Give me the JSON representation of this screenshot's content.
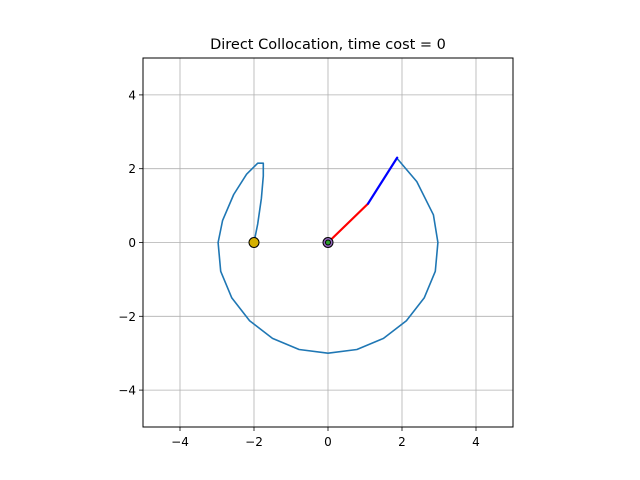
{
  "chart_data": {
    "type": "line",
    "title": "Direct Collocation, time cost = 0",
    "xlabel": "",
    "ylabel": "",
    "xlim": [
      -5,
      5
    ],
    "ylim": [
      -5,
      5
    ],
    "grid": true,
    "aspect": "equal",
    "xticks": [
      -4,
      -2,
      0,
      2,
      4
    ],
    "yticks": [
      -4,
      -2,
      0,
      2,
      4
    ],
    "xtick_labels": [
      "−4",
      "−2",
      "0",
      "2",
      "4"
    ],
    "ytick_labels": [
      "−4",
      "−2",
      "0",
      "2",
      "4"
    ],
    "trajectory": {
      "color": "#1f77b4",
      "x": [
        -2.0,
        -1.9,
        -1.8,
        -1.75,
        -1.75,
        -1.9,
        -2.2,
        -2.55,
        -2.85,
        -2.97,
        -2.9,
        -2.6,
        -2.12,
        -1.5,
        -0.78,
        0.0,
        0.78,
        1.5,
        2.12,
        2.6,
        2.9,
        2.97,
        2.85,
        2.4,
        1.85
      ],
      "y": [
        0.0,
        0.5,
        1.2,
        1.8,
        2.15,
        2.15,
        1.85,
        1.3,
        0.6,
        0.0,
        -0.78,
        -1.5,
        -2.12,
        -2.6,
        -2.9,
        -3.0,
        -2.9,
        -2.6,
        -2.12,
        -1.5,
        -0.78,
        0.0,
        0.75,
        1.65,
        2.3
      ]
    },
    "arm_links": [
      {
        "color": "#ff0000",
        "x": [
          0.0,
          1.08
        ],
        "y": [
          0.0,
          1.05
        ]
      },
      {
        "color": "#0000ff",
        "x": [
          1.08,
          1.87
        ],
        "y": [
          1.05,
          2.3
        ]
      }
    ],
    "markers": [
      {
        "name": "start-marker",
        "x": -2.0,
        "y": 0.0,
        "fill": "#d4b000",
        "stroke": "#000000"
      },
      {
        "name": "base-marker",
        "x": 0.0,
        "y": 0.0,
        "fill": "#9467bd",
        "stroke": "#000000"
      },
      {
        "name": "goal-marker",
        "x": 0.0,
        "y": 0.0,
        "fill": "#2ca02c",
        "stroke": "#000000"
      }
    ],
    "colors": {
      "grid": "#b0b0b0",
      "axes": "#000000"
    }
  }
}
